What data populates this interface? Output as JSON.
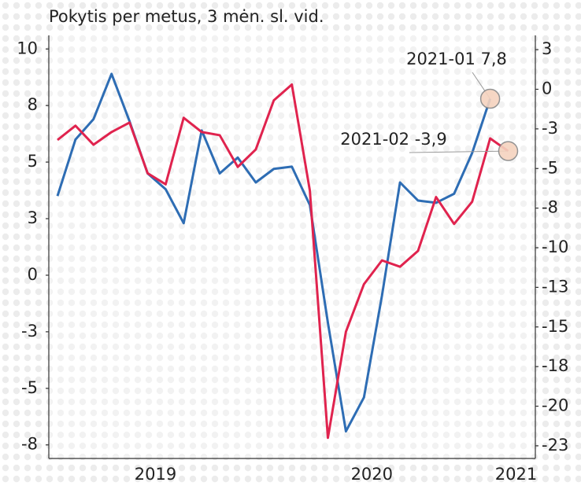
{
  "chart_data": {
    "type": "line",
    "title": "Pokytis per metus, 3 mėn. sl. vid.",
    "categories": [
      null,
      null,
      null,
      null,
      null,
      "2019",
      null,
      null,
      null,
      null,
      null,
      null,
      null,
      null,
      null,
      null,
      null,
      "2020",
      null,
      null,
      null,
      null,
      null,
      null,
      null,
      "2021"
    ],
    "series": [
      {
        "color": "#2e6db4",
        "values": [
          3.5,
          6.0,
          6.9,
          8.9,
          6.8,
          4.5,
          3.8,
          2.3,
          6.4,
          4.5,
          5.2,
          4.1,
          4.7,
          4.8,
          3.1,
          -2.1,
          -6.9,
          -5.4,
          -0.9,
          4.1,
          3.3,
          3.2,
          3.6,
          5.4,
          7.8,
          null
        ]
      },
      {
        "color": "#e0234e",
        "axis": "y2",
        "values": [
          -3.2,
          -2.3,
          -3.5,
          -2.7,
          -2.1,
          -5.3,
          -6.0,
          -1.8,
          -2.7,
          -2.9,
          -4.9,
          -3.8,
          -0.7,
          0.3,
          -6.4,
          -22.0,
          -15.3,
          -12.3,
          -10.8,
          -11.2,
          -10.2,
          -6.8,
          -8.5,
          -7.1,
          -3.1,
          -3.9
        ]
      }
    ],
    "ylim": [
      -8.1,
      10.6
    ],
    "yticks": [
      10,
      {
        "value": 7.5,
        "label": "8"
      },
      5,
      {
        "value": 2.5,
        "label": "3"
      },
      0,
      {
        "value": -2.5,
        "label": "-3"
      },
      -5,
      {
        "value": -7.5,
        "label": "-8"
      }
    ],
    "y2lim": [
      -23.3,
      3.4
    ],
    "y2ticks": [
      {
        "value": 2.5,
        "label": "3"
      },
      0,
      {
        "value": -2.5,
        "label": "-3"
      },
      -5,
      {
        "value": -7.5,
        "label": "-8"
      },
      -10,
      {
        "value": -12.5,
        "label": "-13"
      },
      -15,
      {
        "value": -17.5,
        "label": "-18"
      },
      -20,
      {
        "value": -22.5,
        "label": "-23"
      }
    ],
    "annotations": [
      {
        "text": "2021-01 7,8",
        "series": 0,
        "index": 24
      },
      {
        "text": "2021-02 -3,9",
        "series": 1,
        "index": 25
      }
    ]
  }
}
